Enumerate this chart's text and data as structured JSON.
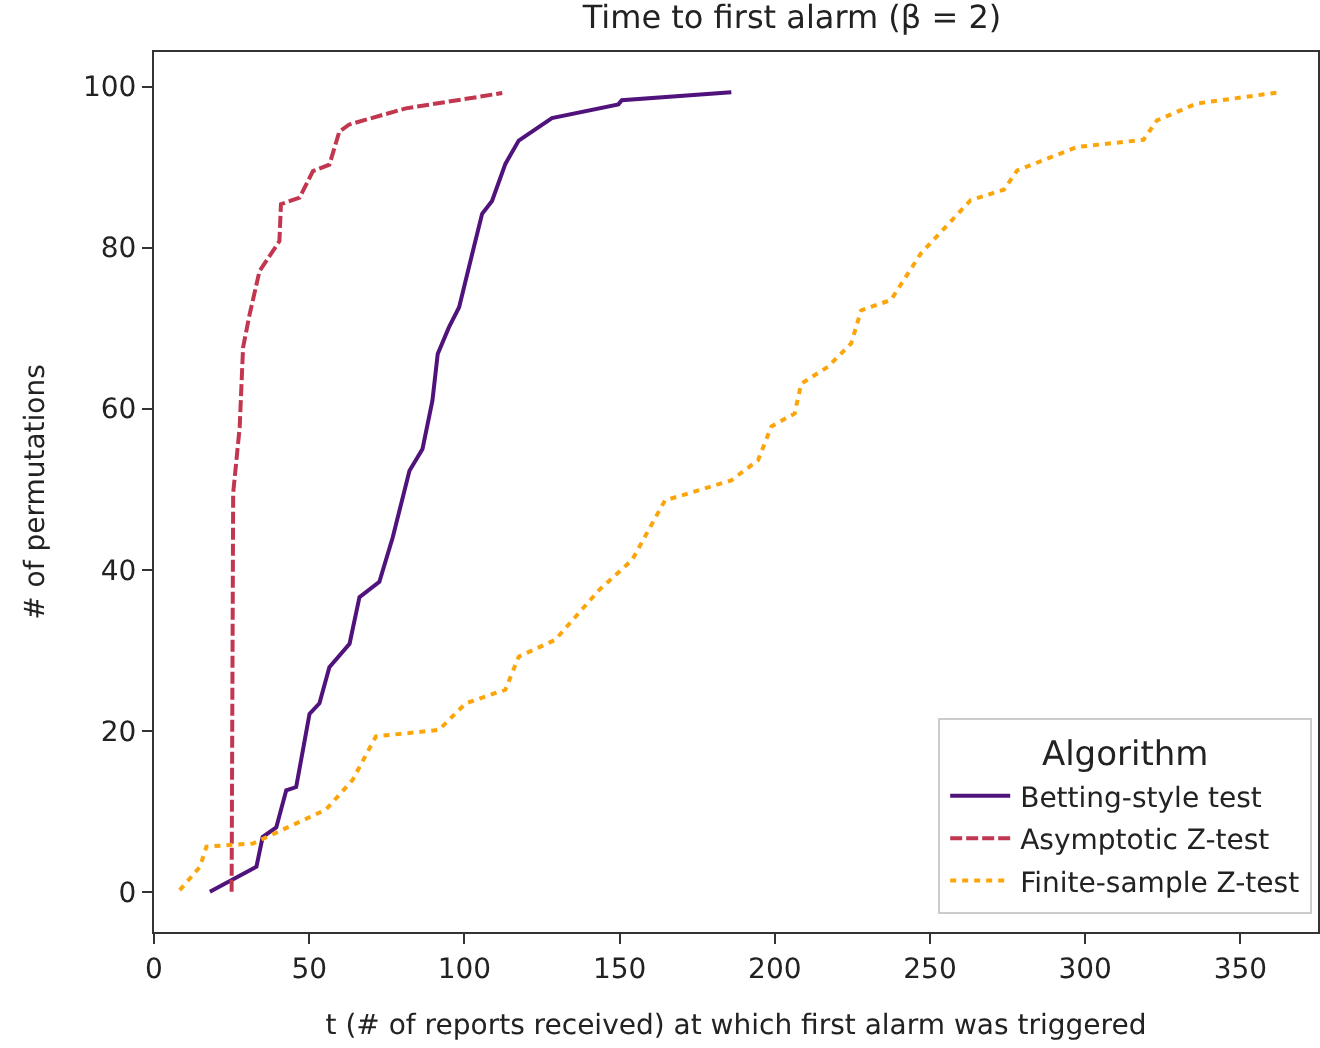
{
  "chart_data": {
    "type": "line",
    "title": "Time to first alarm (β = 2)",
    "xlabel": "t (# of reports received) at which first alarm was triggered",
    "ylabel": "# of permutations",
    "legend_title": "Algorithm",
    "legend": "bottom right",
    "xlim": [
      0,
      375
    ],
    "xticks": [
      0,
      50,
      100,
      150,
      200,
      250,
      300,
      350
    ],
    "ylim": [
      -5,
      104.3
    ],
    "yticks": [
      0,
      20,
      40,
      60,
      80,
      100
    ],
    "series": [
      {
        "name": "Betting-style test",
        "color": "#50127b",
        "line_style": "solid",
        "x": [
          18,
          33,
          35,
          39.4,
          42.6,
          45.8,
          50.1,
          53.3,
          56.5,
          63,
          66.2,
          72.6,
          76.9,
          82.3,
          86.5,
          89.7,
          91.4,
          95,
          98.3,
          102.5,
          105.7,
          108.9,
          113.2,
          117.5,
          128.2,
          149.6,
          150.7,
          186
        ],
        "values": [
          0,
          3.1,
          6.8,
          8,
          12.6,
          13,
          22.1,
          23.4,
          27.9,
          30.8,
          36.6,
          38.5,
          44,
          52.3,
          55,
          61,
          66.8,
          70.1,
          72.6,
          79.2,
          84.2,
          85.8,
          90.4,
          93.3,
          96.1,
          97.8,
          98.3,
          99.3
        ]
      },
      {
        "name": "Asymptotic Z-test",
        "color": "#c2364f",
        "line_style": "dashed",
        "x": [
          25,
          25.5,
          27.6,
          28.7,
          30.8,
          34,
          40.4,
          40.9,
          46.9,
          51.2,
          56.5,
          59.7,
          62.9,
          81.1,
          112.2
        ],
        "values": [
          0,
          49.5,
          57.7,
          67.6,
          71.7,
          77.1,
          80.8,
          85.4,
          86.2,
          89.5,
          90.3,
          94.4,
          95.3,
          97.3,
          99.2
        ]
      },
      {
        "name": "Finite-sample Z-test",
        "color": "#fca50a",
        "line_style": "dotted",
        "x": [
          8.3,
          14.8,
          16.9,
          31.9,
          55.4,
          64,
          71.5,
          91.8,
          100.4,
          113.2,
          117.5,
          129.3,
          143.2,
          154,
          164.6,
          186,
          194.6,
          198.9,
          206.4,
          208.5,
          217.1,
          224.6,
          227.8,
          237.4,
          247.1,
          263.1,
          273.8,
          278.1,
          297.4,
          318.8,
          323.1,
          335.9,
          362.7
        ],
        "values": [
          0.2,
          3.1,
          5.6,
          6,
          10.2,
          13.9,
          19.3,
          20.1,
          23.4,
          25.1,
          29.2,
          31.3,
          37.4,
          41.2,
          48.6,
          51.1,
          53.6,
          57.8,
          59.4,
          63.1,
          65.2,
          68.1,
          72.2,
          73.5,
          79.3,
          85.9,
          87.2,
          89.6,
          92.5,
          93.4,
          95.8,
          97.9,
          99.3
        ]
      }
    ]
  }
}
